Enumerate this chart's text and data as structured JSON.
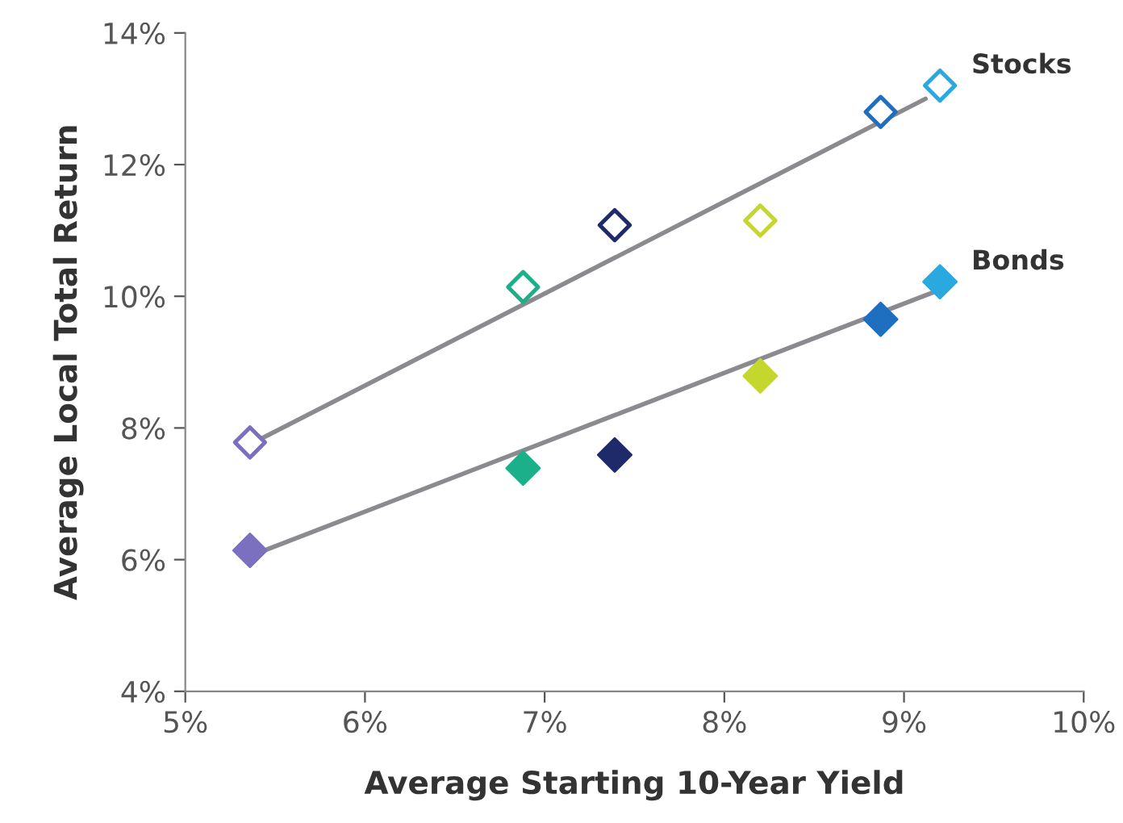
{
  "chart_data": {
    "type": "scatter",
    "xlabel": "Average Starting 10-Year Yield",
    "ylabel": "Average Local Total Return",
    "xlim": [
      5,
      10
    ],
    "ylim": [
      4,
      14
    ],
    "xticks": [
      {
        "value": 5,
        "label": "5%"
      },
      {
        "value": 6,
        "label": "6%"
      },
      {
        "value": 7,
        "label": "7%"
      },
      {
        "value": 8,
        "label": "8%"
      },
      {
        "value": 9,
        "label": "9%"
      },
      {
        "value": 10,
        "label": "10%"
      }
    ],
    "yticks": [
      {
        "value": 4,
        "label": "4%"
      },
      {
        "value": 6,
        "label": "6%"
      },
      {
        "value": 8,
        "label": "8%"
      },
      {
        "value": 10,
        "label": "10%"
      },
      {
        "value": 12,
        "label": "12%"
      },
      {
        "value": 14,
        "label": "14%"
      }
    ],
    "grid": false,
    "legend": false,
    "marker": "diamond",
    "series": [
      {
        "type": "line",
        "marker": "none",
        "color": "#8a8a8f",
        "x": [
          5.36,
          9.12
        ],
        "values": [
          7.75,
          13.0
        ]
      },
      {
        "type": "line",
        "marker": "none",
        "color": "#8a8a8f",
        "x": [
          5.45,
          9.2
        ],
        "values": [
          6.15,
          10.1
        ]
      },
      {
        "name": "Stocks",
        "x": [
          5.36,
          6.88,
          7.39,
          8.2,
          8.87,
          9.2
        ],
        "values": [
          7.78,
          10.14,
          11.08,
          11.15,
          12.8,
          13.2
        ],
        "colors": [
          "#7b6fc0",
          "#1bb08a",
          "#1f2a6b",
          "#c5d72c",
          "#1f6fc0",
          "#2aa8e0"
        ]
      },
      {
        "name": "Bonds",
        "x": [
          5.36,
          6.88,
          7.39,
          8.2,
          8.87,
          9.2
        ],
        "values": [
          6.14,
          7.39,
          7.59,
          8.79,
          9.65,
          10.22
        ],
        "colors": [
          "#7b6fc0",
          "#1bb08a",
          "#1f2a6b",
          "#c5d72c",
          "#1f6fc0",
          "#2aa8e0"
        ]
      }
    ]
  }
}
